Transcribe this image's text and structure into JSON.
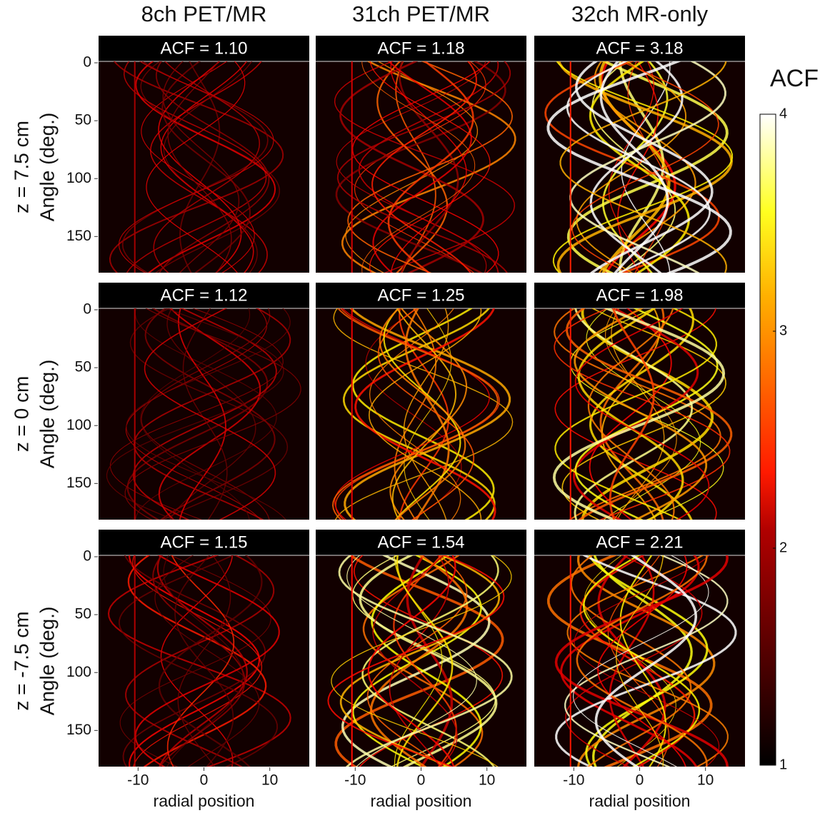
{
  "figure": {
    "columns": [
      "8ch PET/MR",
      "31ch PET/MR",
      "32ch MR-only"
    ],
    "rows": [
      {
        "label": "z = 7.5 cm",
        "panels": [
          "ACF = 1.10",
          "ACF = 1.18",
          "ACF = 3.18"
        ]
      },
      {
        "label": "z = 0 cm",
        "panels": [
          "ACF = 1.12",
          "ACF = 1.25",
          "ACF = 1.98"
        ]
      },
      {
        "label": "z = -7.5 cm",
        "panels": [
          "ACF = 1.15",
          "ACF = 1.54",
          "ACF = 2.21"
        ]
      }
    ],
    "y_axis": {
      "label": "Angle (deg.)",
      "ylim": [
        0,
        180
      ],
      "yticks": [
        0,
        50,
        100,
        150
      ]
    },
    "x_axis": {
      "label": "radial position",
      "xlim": [
        -16,
        16
      ],
      "xticks": [
        -10,
        0,
        10
      ]
    },
    "colorbar": {
      "title": "ACF",
      "lim": [
        1,
        4
      ],
      "ticks": [
        1,
        2,
        3,
        4
      ]
    }
  }
}
